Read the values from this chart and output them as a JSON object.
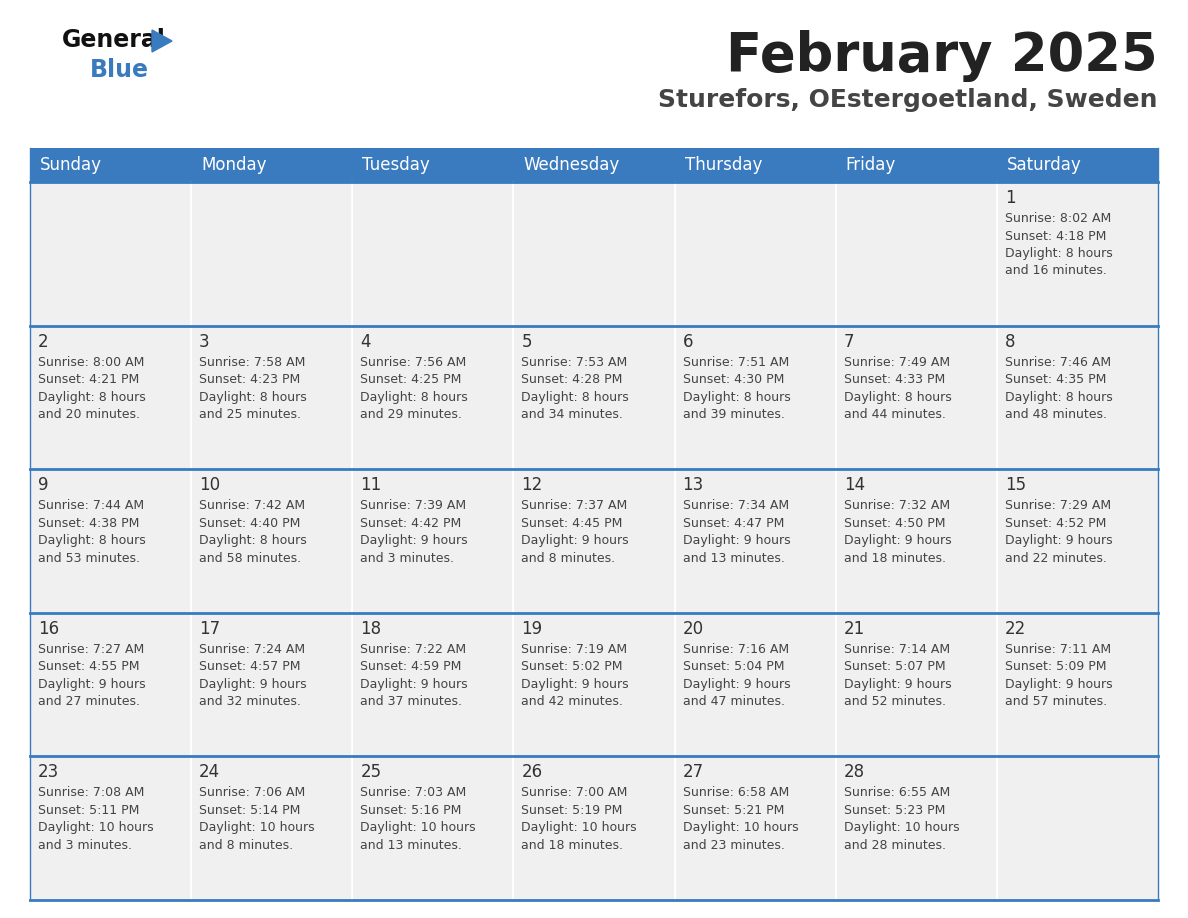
{
  "title": "February 2025",
  "subtitle": "Sturefors, OEstergoetland, Sweden",
  "header_bg": "#3a7abf",
  "header_text": "#ffffff",
  "cell_bg": "#f0f0f0",
  "text_color": "#444444",
  "day_number_color": "#333333",
  "line_color": "#3a7abf",
  "days_of_week": [
    "Sunday",
    "Monday",
    "Tuesday",
    "Wednesday",
    "Thursday",
    "Friday",
    "Saturday"
  ],
  "weeks": [
    [
      {
        "day": null,
        "info": null
      },
      {
        "day": null,
        "info": null
      },
      {
        "day": null,
        "info": null
      },
      {
        "day": null,
        "info": null
      },
      {
        "day": null,
        "info": null
      },
      {
        "day": null,
        "info": null
      },
      {
        "day": 1,
        "info": "Sunrise: 8:02 AM\nSunset: 4:18 PM\nDaylight: 8 hours\nand 16 minutes."
      }
    ],
    [
      {
        "day": 2,
        "info": "Sunrise: 8:00 AM\nSunset: 4:21 PM\nDaylight: 8 hours\nand 20 minutes."
      },
      {
        "day": 3,
        "info": "Sunrise: 7:58 AM\nSunset: 4:23 PM\nDaylight: 8 hours\nand 25 minutes."
      },
      {
        "day": 4,
        "info": "Sunrise: 7:56 AM\nSunset: 4:25 PM\nDaylight: 8 hours\nand 29 minutes."
      },
      {
        "day": 5,
        "info": "Sunrise: 7:53 AM\nSunset: 4:28 PM\nDaylight: 8 hours\nand 34 minutes."
      },
      {
        "day": 6,
        "info": "Sunrise: 7:51 AM\nSunset: 4:30 PM\nDaylight: 8 hours\nand 39 minutes."
      },
      {
        "day": 7,
        "info": "Sunrise: 7:49 AM\nSunset: 4:33 PM\nDaylight: 8 hours\nand 44 minutes."
      },
      {
        "day": 8,
        "info": "Sunrise: 7:46 AM\nSunset: 4:35 PM\nDaylight: 8 hours\nand 48 minutes."
      }
    ],
    [
      {
        "day": 9,
        "info": "Sunrise: 7:44 AM\nSunset: 4:38 PM\nDaylight: 8 hours\nand 53 minutes."
      },
      {
        "day": 10,
        "info": "Sunrise: 7:42 AM\nSunset: 4:40 PM\nDaylight: 8 hours\nand 58 minutes."
      },
      {
        "day": 11,
        "info": "Sunrise: 7:39 AM\nSunset: 4:42 PM\nDaylight: 9 hours\nand 3 minutes."
      },
      {
        "day": 12,
        "info": "Sunrise: 7:37 AM\nSunset: 4:45 PM\nDaylight: 9 hours\nand 8 minutes."
      },
      {
        "day": 13,
        "info": "Sunrise: 7:34 AM\nSunset: 4:47 PM\nDaylight: 9 hours\nand 13 minutes."
      },
      {
        "day": 14,
        "info": "Sunrise: 7:32 AM\nSunset: 4:50 PM\nDaylight: 9 hours\nand 18 minutes."
      },
      {
        "day": 15,
        "info": "Sunrise: 7:29 AM\nSunset: 4:52 PM\nDaylight: 9 hours\nand 22 minutes."
      }
    ],
    [
      {
        "day": 16,
        "info": "Sunrise: 7:27 AM\nSunset: 4:55 PM\nDaylight: 9 hours\nand 27 minutes."
      },
      {
        "day": 17,
        "info": "Sunrise: 7:24 AM\nSunset: 4:57 PM\nDaylight: 9 hours\nand 32 minutes."
      },
      {
        "day": 18,
        "info": "Sunrise: 7:22 AM\nSunset: 4:59 PM\nDaylight: 9 hours\nand 37 minutes."
      },
      {
        "day": 19,
        "info": "Sunrise: 7:19 AM\nSunset: 5:02 PM\nDaylight: 9 hours\nand 42 minutes."
      },
      {
        "day": 20,
        "info": "Sunrise: 7:16 AM\nSunset: 5:04 PM\nDaylight: 9 hours\nand 47 minutes."
      },
      {
        "day": 21,
        "info": "Sunrise: 7:14 AM\nSunset: 5:07 PM\nDaylight: 9 hours\nand 52 minutes."
      },
      {
        "day": 22,
        "info": "Sunrise: 7:11 AM\nSunset: 5:09 PM\nDaylight: 9 hours\nand 57 minutes."
      }
    ],
    [
      {
        "day": 23,
        "info": "Sunrise: 7:08 AM\nSunset: 5:11 PM\nDaylight: 10 hours\nand 3 minutes."
      },
      {
        "day": 24,
        "info": "Sunrise: 7:06 AM\nSunset: 5:14 PM\nDaylight: 10 hours\nand 8 minutes."
      },
      {
        "day": 25,
        "info": "Sunrise: 7:03 AM\nSunset: 5:16 PM\nDaylight: 10 hours\nand 13 minutes."
      },
      {
        "day": 26,
        "info": "Sunrise: 7:00 AM\nSunset: 5:19 PM\nDaylight: 10 hours\nand 18 minutes."
      },
      {
        "day": 27,
        "info": "Sunrise: 6:58 AM\nSunset: 5:21 PM\nDaylight: 10 hours\nand 23 minutes."
      },
      {
        "day": 28,
        "info": "Sunrise: 6:55 AM\nSunset: 5:23 PM\nDaylight: 10 hours\nand 28 minutes."
      },
      {
        "day": null,
        "info": null
      }
    ]
  ]
}
